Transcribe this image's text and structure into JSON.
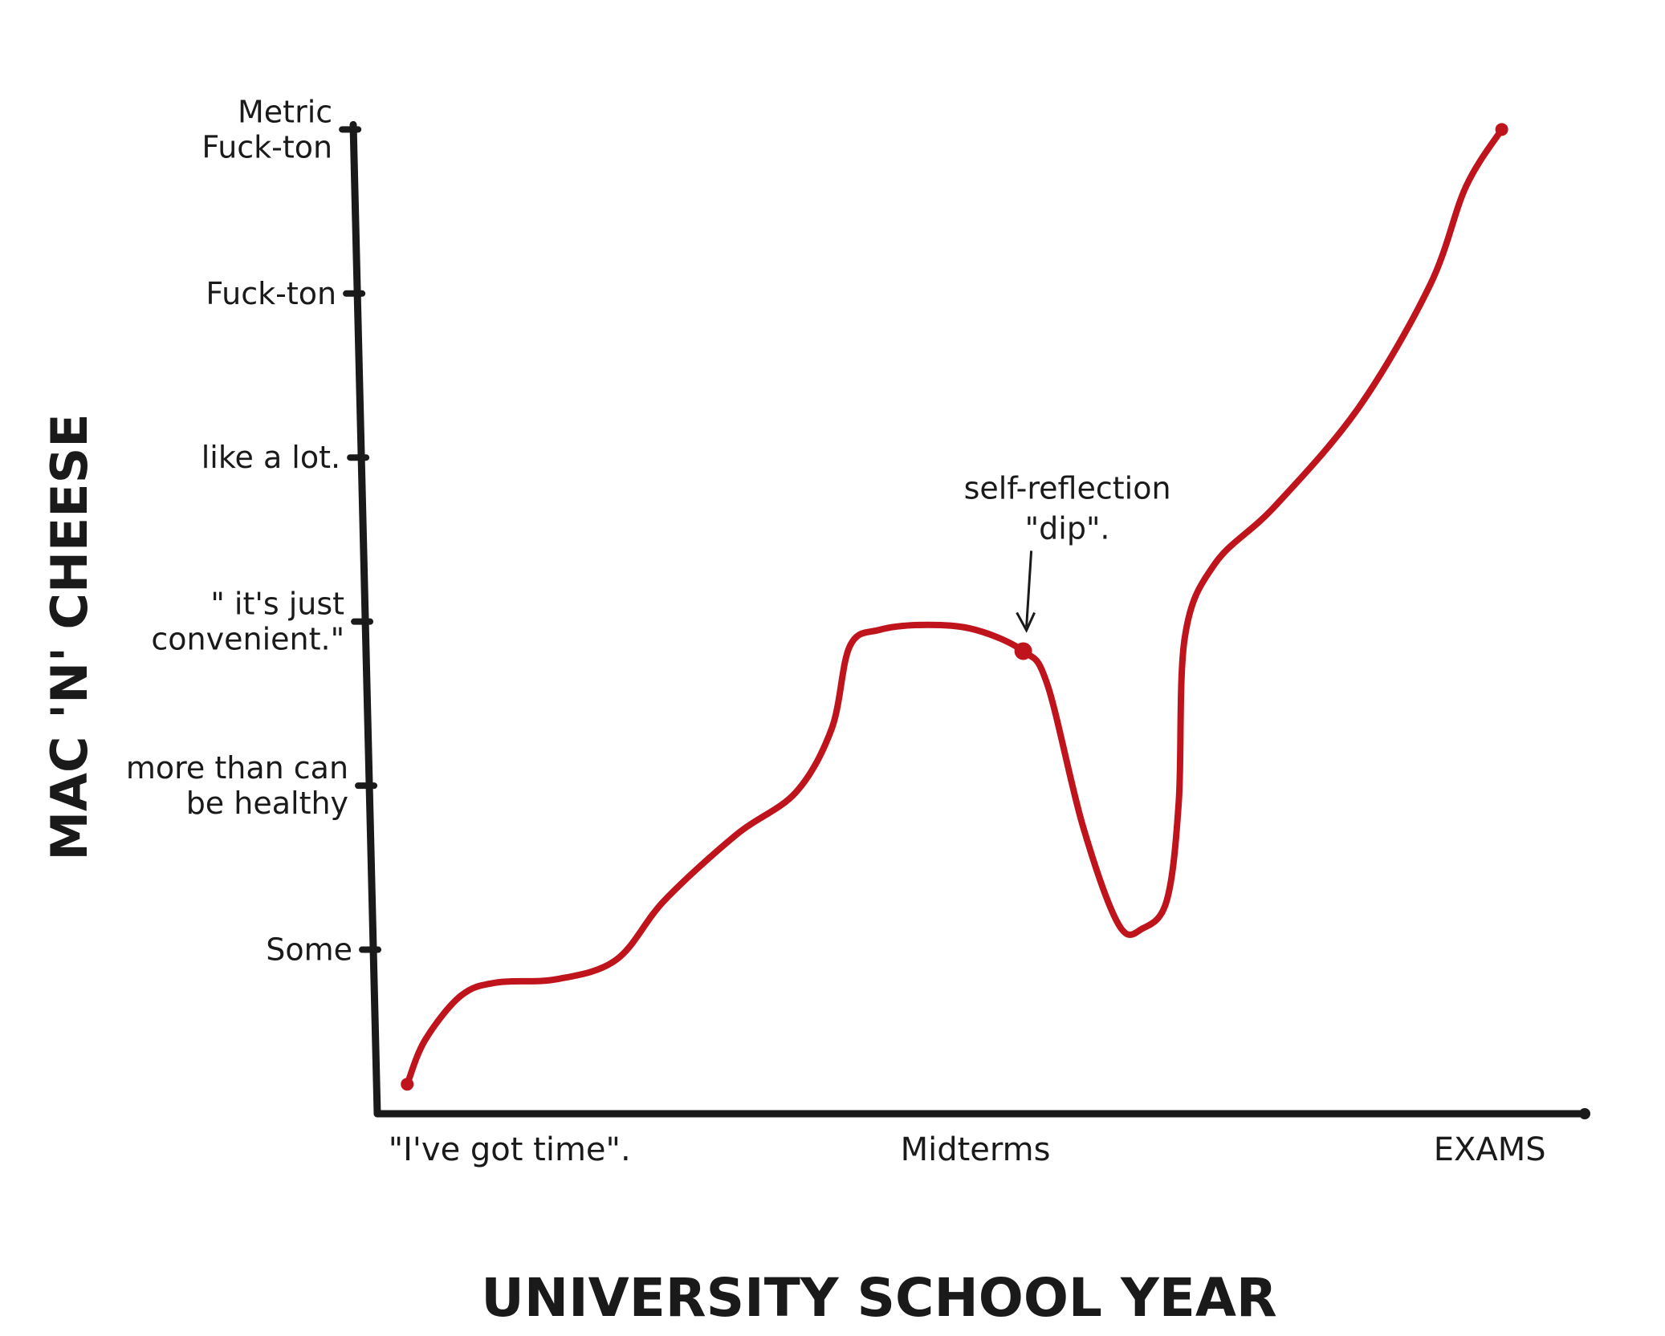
{
  "chart_data": {
    "type": "line",
    "title": "",
    "xlabel": "UNIVERSITY SCHOOL YEAR",
    "ylabel": "MAC 'N' CHEESE",
    "x_tick_labels": [
      {
        "label": "\"I've got time\".",
        "x": 0.03
      },
      {
        "label": "Midterms",
        "x": 0.5
      },
      {
        "label": "EXAMS",
        "x": 0.93
      }
    ],
    "y_tick_labels": [
      {
        "label": "Some",
        "y": 1
      },
      {
        "label": "more than can be healthy",
        "y": 2
      },
      {
        "label": "\" it's just convenient.\"",
        "y": 3
      },
      {
        "label": "like a lot.",
        "y": 4
      },
      {
        "label": "Fuck-ton",
        "y": 5
      },
      {
        "label": "Metric Fuck-ton",
        "y": 6
      }
    ],
    "xlim": [
      0,
      1
    ],
    "ylim": [
      0,
      6.3
    ],
    "series": [
      {
        "color": "#c0141c",
        "points": [
          [
            0.025,
            0.18
          ],
          [
            0.04,
            0.45
          ],
          [
            0.07,
            0.72
          ],
          [
            0.1,
            0.8
          ],
          [
            0.15,
            0.82
          ],
          [
            0.2,
            0.94
          ],
          [
            0.24,
            1.3
          ],
          [
            0.3,
            1.7
          ],
          [
            0.35,
            1.96
          ],
          [
            0.38,
            2.35
          ],
          [
            0.395,
            2.85
          ],
          [
            0.42,
            2.95
          ],
          [
            0.46,
            2.98
          ],
          [
            0.5,
            2.95
          ],
          [
            0.54,
            2.82
          ],
          [
            0.56,
            2.62
          ],
          [
            0.59,
            1.75
          ],
          [
            0.62,
            1.15
          ],
          [
            0.64,
            1.13
          ],
          [
            0.66,
            1.3
          ],
          [
            0.67,
            1.9
          ],
          [
            0.675,
            2.9
          ],
          [
            0.7,
            3.35
          ],
          [
            0.75,
            3.7
          ],
          [
            0.82,
            4.3
          ],
          [
            0.88,
            5.05
          ],
          [
            0.91,
            5.65
          ],
          [
            0.94,
            6.0
          ]
        ]
      }
    ],
    "annotation": {
      "text_line1": "self-reflection",
      "text_line2": "\"dip\".",
      "x": 0.54,
      "y": 2.82
    },
    "grid": false,
    "legend": "none"
  }
}
